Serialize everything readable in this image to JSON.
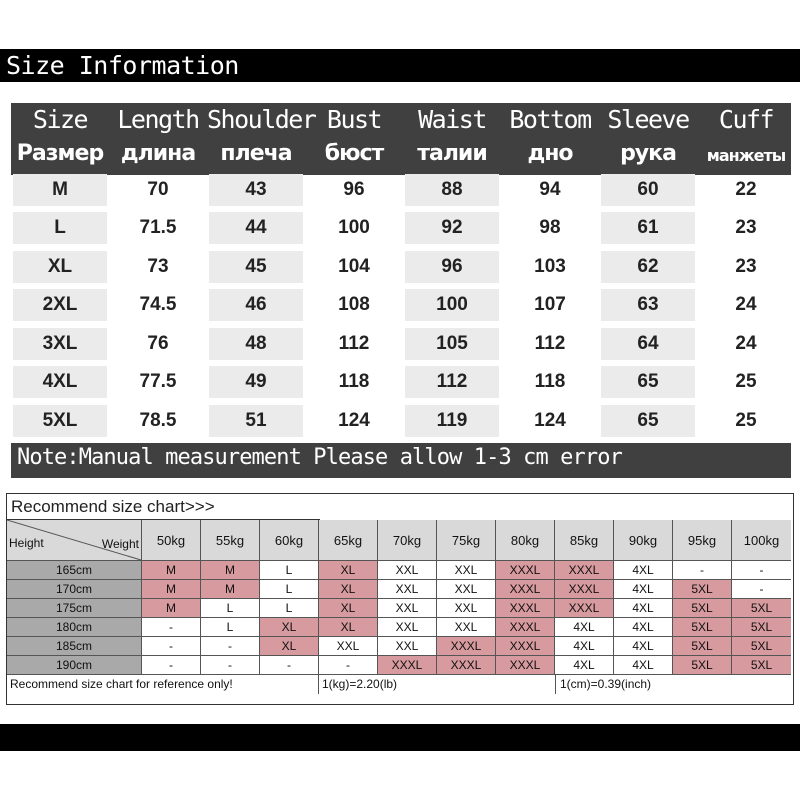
{
  "title": "Size Information",
  "measure": {
    "headers_en": [
      "Size",
      "Length",
      "Shoulder",
      "Bust",
      "Waist",
      "Bottom",
      "Sleeve",
      "Cuff"
    ],
    "headers_ru": [
      "Размер",
      "длина",
      "плеча",
      "бюст",
      "талии",
      "дно",
      "рука",
      "манжеты"
    ],
    "rows": [
      [
        "M",
        "70",
        "43",
        "96",
        "88",
        "94",
        "60",
        "22"
      ],
      [
        "L",
        "71.5",
        "44",
        "100",
        "92",
        "98",
        "61",
        "23"
      ],
      [
        "XL",
        "73",
        "45",
        "104",
        "96",
        "103",
        "62",
        "23"
      ],
      [
        "2XL",
        "74.5",
        "46",
        "108",
        "100",
        "107",
        "63",
        "24"
      ],
      [
        "3XL",
        "76",
        "48",
        "112",
        "105",
        "112",
        "64",
        "24"
      ],
      [
        "4XL",
        "77.5",
        "49",
        "118",
        "112",
        "118",
        "65",
        "25"
      ],
      [
        "5XL",
        "78.5",
        "51",
        "124",
        "119",
        "124",
        "65",
        "25"
      ]
    ]
  },
  "note": "Note:Manual measurement Please allow 1-3 cm error",
  "recommend": {
    "title": "Recommend size chart>>>",
    "corner_height": "Height",
    "corner_weight": "Weight",
    "weights": [
      "50kg",
      "55kg",
      "60kg",
      "65kg",
      "70kg",
      "75kg",
      "80kg",
      "85kg",
      "90kg",
      "95kg",
      "100kg"
    ],
    "rows": [
      {
        "height": "165cm",
        "cells": [
          "M",
          "M",
          "L",
          "XL",
          "XXL",
          "XXL",
          "XXXL",
          "XXXL",
          "4XL",
          "-",
          "-"
        ],
        "colors": [
          "pink",
          "pink",
          "white",
          "pink",
          "white",
          "white",
          "pink",
          "pink",
          "white",
          "white",
          "white"
        ]
      },
      {
        "height": "170cm",
        "cells": [
          "M",
          "M",
          "L",
          "XL",
          "XXL",
          "XXL",
          "XXXL",
          "XXXL",
          "4XL",
          "5XL",
          "-"
        ],
        "colors": [
          "pink",
          "pink",
          "white",
          "pink",
          "white",
          "white",
          "pink",
          "pink",
          "white",
          "pink",
          "white"
        ]
      },
      {
        "height": "175cm",
        "cells": [
          "M",
          "L",
          "L",
          "XL",
          "XXL",
          "XXL",
          "XXXL",
          "XXXL",
          "4XL",
          "5XL",
          "5XL"
        ],
        "colors": [
          "pink",
          "white",
          "white",
          "pink",
          "white",
          "white",
          "pink",
          "pink",
          "white",
          "pink",
          "pink"
        ]
      },
      {
        "height": "180cm",
        "cells": [
          "-",
          "L",
          "XL",
          "XL",
          "XXL",
          "XXL",
          "XXXL",
          "4XL",
          "4XL",
          "5XL",
          "5XL"
        ],
        "colors": [
          "white",
          "white",
          "pink",
          "pink",
          "white",
          "white",
          "pink",
          "white",
          "white",
          "pink",
          "pink"
        ]
      },
      {
        "height": "185cm",
        "cells": [
          "-",
          "-",
          "XL",
          "XXL",
          "XXL",
          "XXXL",
          "XXXL",
          "4XL",
          "4XL",
          "5XL",
          "5XL"
        ],
        "colors": [
          "white",
          "white",
          "pink",
          "white",
          "white",
          "pink",
          "pink",
          "white",
          "white",
          "pink",
          "pink"
        ]
      },
      {
        "height": "190cm",
        "cells": [
          "-",
          "-",
          "-",
          "-",
          "XXXL",
          "XXXL",
          "XXXL",
          "4XL",
          "4XL",
          "5XL",
          "5XL"
        ],
        "colors": [
          "white",
          "white",
          "white",
          "white",
          "pink",
          "pink",
          "pink",
          "white",
          "white",
          "pink",
          "pink"
        ]
      }
    ],
    "footer_left": "Recommend size chart for reference only!",
    "footer_mid": "1(kg)=2.20(lb)",
    "footer_right": "1(cm)=0.39(inch)"
  },
  "colors": {
    "band": "#000000",
    "header": "#404040",
    "shade": "#ebebeb",
    "pink": "#d79a9f",
    "gray": "#a9a9a9"
  }
}
